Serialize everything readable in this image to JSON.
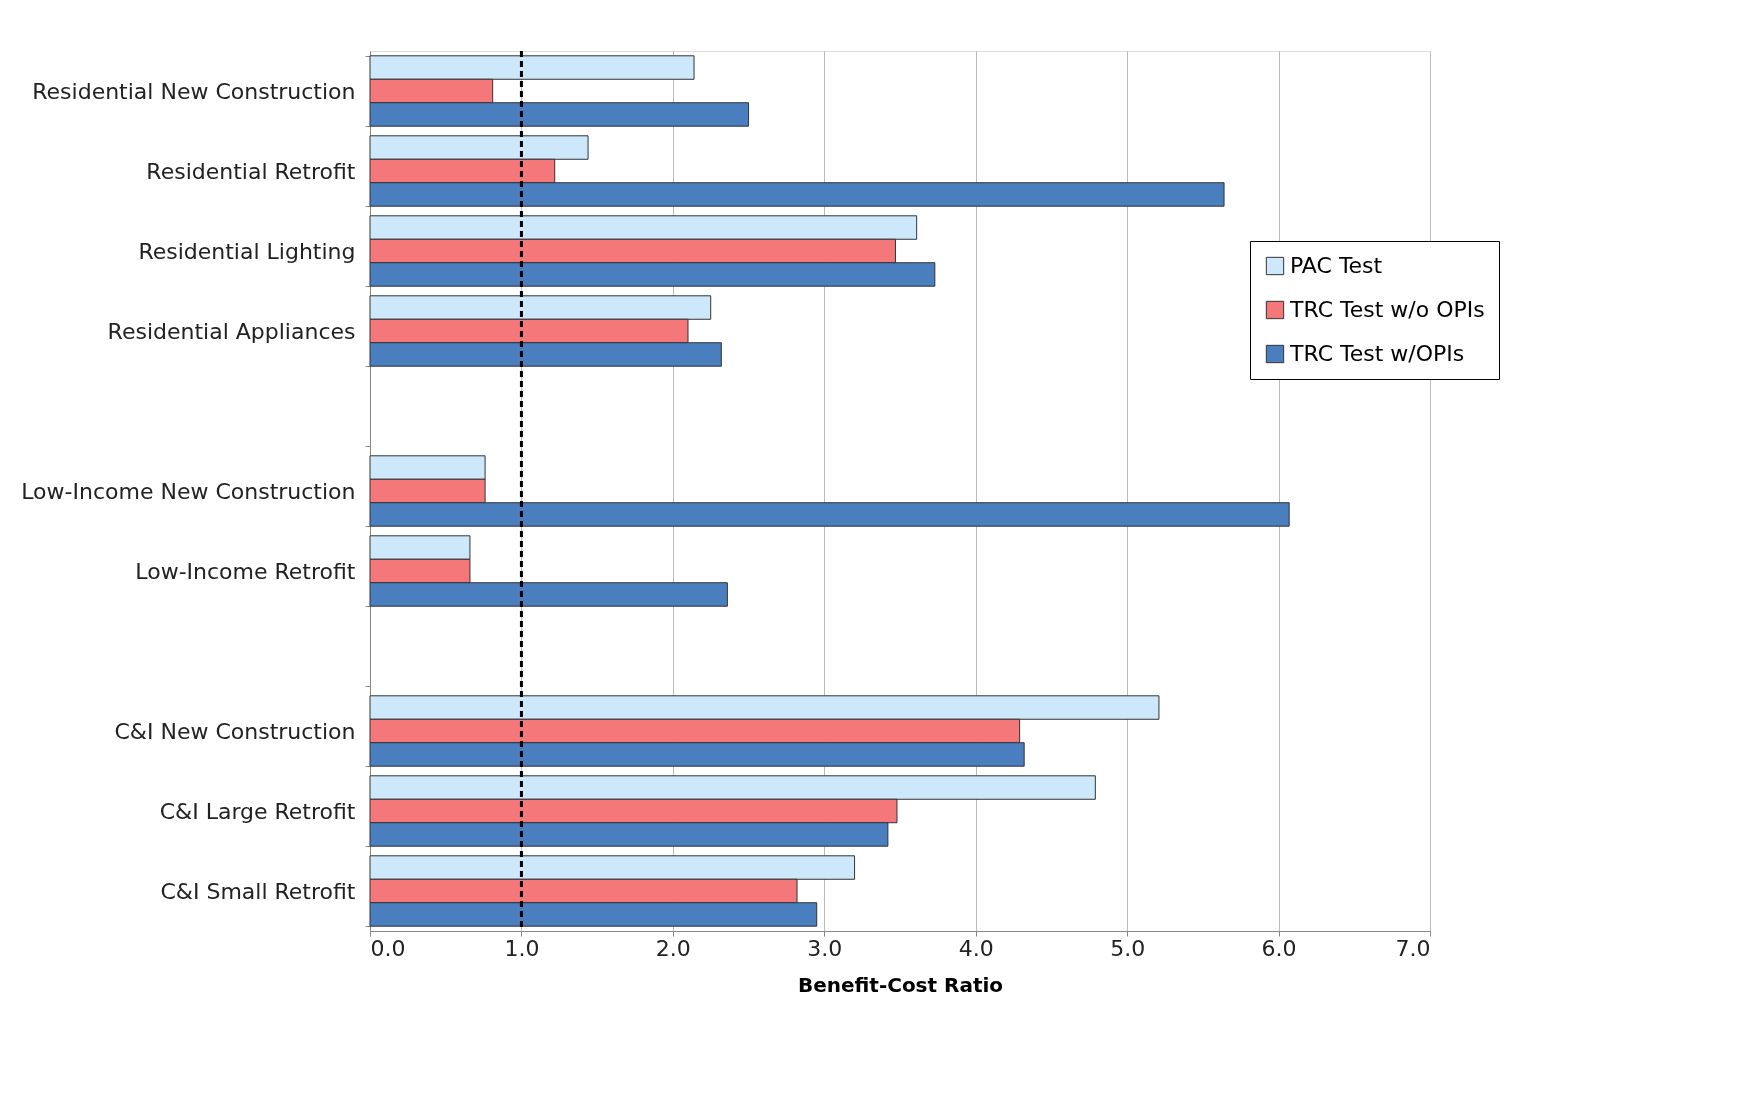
{
  "chart_data": {
    "type": "bar",
    "orientation": "horizontal",
    "xlabel": "Benefit-Cost Ratio",
    "categories": [
      "Residential New Construction",
      "Residential Retrofit",
      "Residential Lighting",
      "Residential Appliances",
      null,
      "Low-Income New Construction",
      "Low-Income Retrofit",
      null,
      "C&I New Construction",
      "C&I Large Retrofit",
      "C&I Small Retrofit"
    ],
    "series": [
      {
        "name": "PAC Test",
        "color": "#cce8fa",
        "values": [
          2.14,
          1.44,
          3.61,
          2.25,
          null,
          0.76,
          0.66,
          null,
          5.21,
          4.79,
          3.2
        ]
      },
      {
        "name": "TRC Test w/o OPIs",
        "color": "#f4777a",
        "values": [
          0.81,
          1.22,
          3.47,
          2.1,
          null,
          0.76,
          0.66,
          null,
          4.29,
          3.48,
          2.82
        ]
      },
      {
        "name": "TRC Test w/OPIs",
        "color": "#4a7ebf",
        "values": [
          2.5,
          5.64,
          3.73,
          2.32,
          null,
          6.07,
          2.36,
          null,
          4.32,
          3.42,
          2.95
        ]
      }
    ],
    "xlim": [
      0,
      7
    ],
    "xticks": [
      {
        "value": 0,
        "label": "0.0"
      },
      {
        "value": 1,
        "label": "1.0"
      },
      {
        "value": 2,
        "label": "2.0"
      },
      {
        "value": 3,
        "label": "3.0"
      },
      {
        "value": 4,
        "label": "4.0"
      },
      {
        "value": 5,
        "label": "5.0"
      },
      {
        "value": 6,
        "label": "6.0"
      },
      {
        "value": 7,
        "label": "7.0"
      }
    ],
    "ref_lines": [
      {
        "axis": "x",
        "value": 1,
        "color": "#000000",
        "line_style": "dashed"
      }
    ],
    "grid": "x",
    "legend": "top right"
  }
}
